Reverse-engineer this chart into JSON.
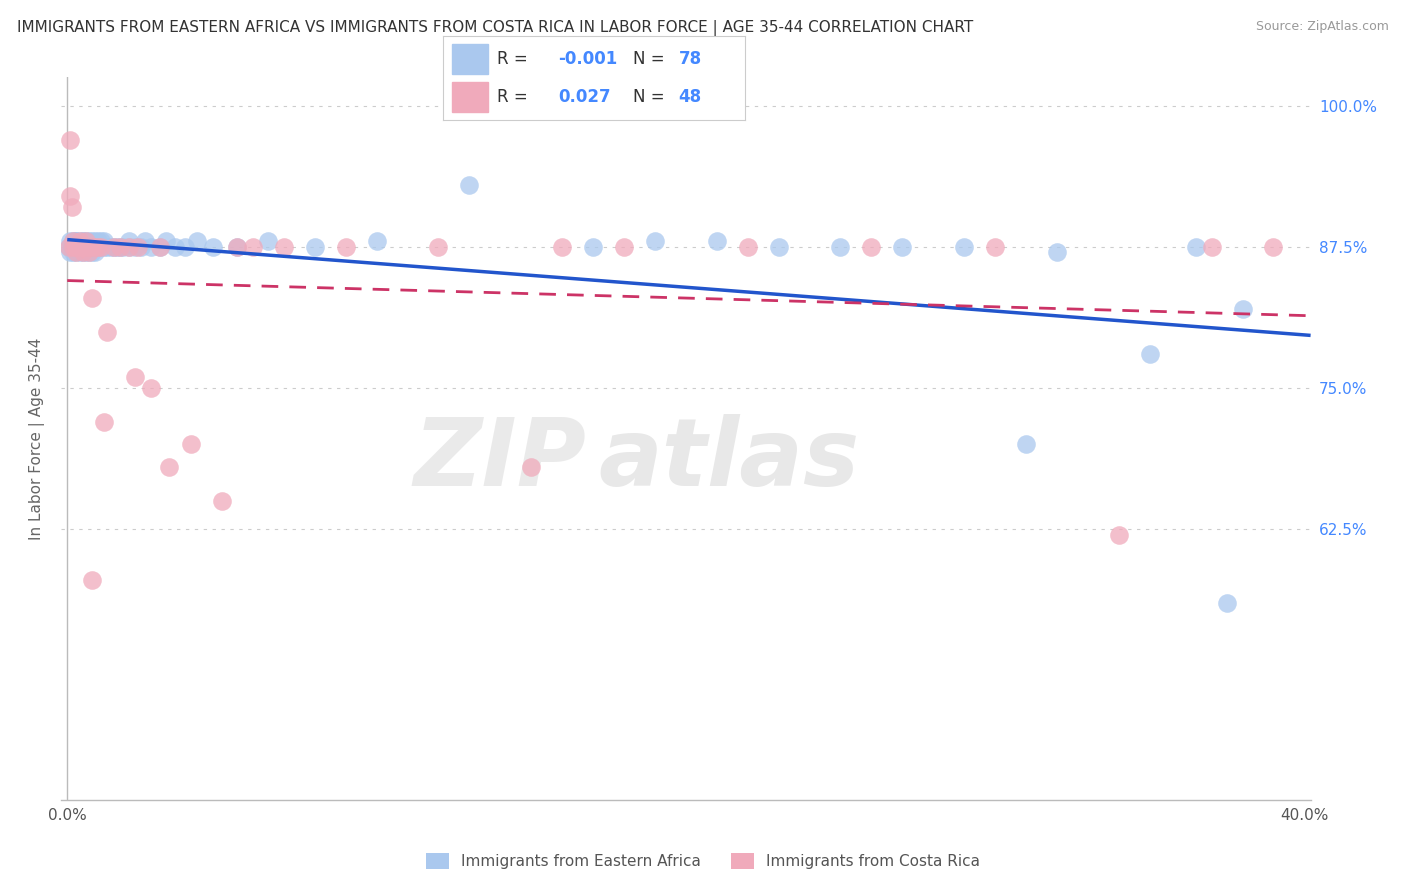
{
  "title": "IMMIGRANTS FROM EASTERN AFRICA VS IMMIGRANTS FROM COSTA RICA IN LABOR FORCE | AGE 35-44 CORRELATION CHART",
  "source": "Source: ZipAtlas.com",
  "ylabel": "In Labor Force | Age 35-44",
  "xlabel": "",
  "watermark_zip": "ZIP",
  "watermark_atlas": "atlas",
  "xlim": [
    -0.002,
    0.402
  ],
  "ylim": [
    0.385,
    1.025
  ],
  "yticks": [
    0.625,
    0.75,
    0.875,
    1.0
  ],
  "ytick_labels": [
    "62.5%",
    "75.0%",
    "87.5%",
    "100.0%"
  ],
  "xtick_positions": [
    0.0,
    0.4
  ],
  "xtick_labels": [
    "0.0%",
    "40.0%"
  ],
  "ea_color": "#aac8ee",
  "ea_trend_color": "#2255cc",
  "cr_color": "#f0aabb",
  "cr_trend_color": "#cc3366",
  "ea_R": -0.001,
  "ea_N": 78,
  "cr_R": 0.027,
  "cr_N": 48,
  "legend_R_label": "R = ",
  "legend_N_label": "N = ",
  "background_color": "#ffffff",
  "grid_color": "#cccccc",
  "title_fontsize": 11,
  "axis_label_fontsize": 11,
  "tick_fontsize": 11,
  "right_tick_color": "#4488ff",
  "ea_x": [
    0.0005,
    0.001,
    0.001,
    0.0015,
    0.002,
    0.002,
    0.002,
    0.002,
    0.0025,
    0.003,
    0.003,
    0.003,
    0.003,
    0.003,
    0.004,
    0.004,
    0.004,
    0.004,
    0.005,
    0.005,
    0.005,
    0.005,
    0.005,
    0.006,
    0.006,
    0.006,
    0.007,
    0.007,
    0.007,
    0.007,
    0.008,
    0.008,
    0.008,
    0.009,
    0.009,
    0.009,
    0.01,
    0.01,
    0.011,
    0.011,
    0.012,
    0.012,
    0.013,
    0.014,
    0.015,
    0.016,
    0.017,
    0.018,
    0.02,
    0.02,
    0.022,
    0.024,
    0.025,
    0.027,
    0.03,
    0.032,
    0.035,
    0.038,
    0.042,
    0.047,
    0.055,
    0.065,
    0.08,
    0.1,
    0.13,
    0.17,
    0.21,
    0.25,
    0.29,
    0.32,
    0.35,
    0.365,
    0.375,
    0.38,
    0.19,
    0.23,
    0.27,
    0.31
  ],
  "ea_y": [
    0.875,
    0.88,
    0.87,
    0.875,
    0.875,
    0.88,
    0.875,
    0.87,
    0.88,
    0.875,
    0.88,
    0.87,
    0.875,
    0.88,
    0.875,
    0.88,
    0.87,
    0.875,
    0.875,
    0.88,
    0.87,
    0.875,
    0.88,
    0.875,
    0.88,
    0.87,
    0.875,
    0.88,
    0.87,
    0.875,
    0.875,
    0.88,
    0.87,
    0.875,
    0.88,
    0.87,
    0.875,
    0.88,
    0.875,
    0.88,
    0.875,
    0.88,
    0.875,
    0.875,
    0.875,
    0.875,
    0.875,
    0.875,
    0.88,
    0.875,
    0.875,
    0.875,
    0.88,
    0.875,
    0.875,
    0.88,
    0.875,
    0.875,
    0.88,
    0.875,
    0.875,
    0.88,
    0.875,
    0.88,
    0.93,
    0.875,
    0.88,
    0.875,
    0.875,
    0.87,
    0.78,
    0.875,
    0.56,
    0.82,
    0.88,
    0.875,
    0.875,
    0.7
  ],
  "cr_x": [
    0.0005,
    0.001,
    0.001,
    0.0015,
    0.002,
    0.002,
    0.003,
    0.003,
    0.004,
    0.004,
    0.005,
    0.005,
    0.006,
    0.006,
    0.007,
    0.007,
    0.008,
    0.008,
    0.009,
    0.01,
    0.011,
    0.013,
    0.015,
    0.017,
    0.02,
    0.023,
    0.027,
    0.03,
    0.04,
    0.05,
    0.06,
    0.07,
    0.09,
    0.12,
    0.15,
    0.18,
    0.22,
    0.26,
    0.3,
    0.34,
    0.37,
    0.39,
    0.008,
    0.012,
    0.022,
    0.033,
    0.055,
    0.16
  ],
  "cr_y": [
    0.875,
    0.97,
    0.92,
    0.91,
    0.875,
    0.88,
    0.875,
    0.87,
    0.875,
    0.88,
    0.875,
    0.87,
    0.875,
    0.88,
    0.875,
    0.87,
    0.875,
    0.83,
    0.875,
    0.875,
    0.875,
    0.8,
    0.875,
    0.875,
    0.875,
    0.875,
    0.75,
    0.875,
    0.7,
    0.65,
    0.875,
    0.875,
    0.875,
    0.875,
    0.68,
    0.875,
    0.875,
    0.875,
    0.875,
    0.62,
    0.875,
    0.875,
    0.58,
    0.72,
    0.76,
    0.68,
    0.875,
    0.875
  ]
}
